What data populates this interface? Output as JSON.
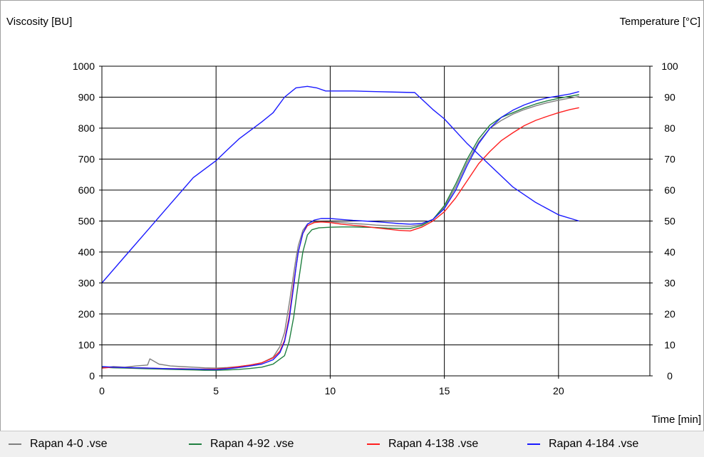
{
  "chart_data": {
    "type": "line",
    "ylabel": "Viscosity [BU]",
    "y2label": "Temperature [°C]",
    "xlabel": "Time [min]",
    "xlim": [
      0,
      24
    ],
    "ylim": [
      0,
      1000
    ],
    "y2lim": [
      0,
      100
    ],
    "x_ticks": [
      0,
      5,
      10,
      15,
      20
    ],
    "y_ticks": [
      0,
      100,
      200,
      300,
      400,
      500,
      600,
      700,
      800,
      900,
      1000
    ],
    "y2_ticks": [
      0,
      10,
      20,
      30,
      40,
      50,
      60,
      70,
      80,
      90,
      100
    ],
    "grid": true,
    "legend_position": "bottom",
    "series": [
      {
        "name": "Rapan 4-0 .vse",
        "color": "#808080",
        "axis": "viscosity",
        "x": [
          0,
          0.5,
          1,
          1.5,
          2,
          2.1,
          2.5,
          3,
          3.5,
          4,
          4.5,
          5,
          5.5,
          6,
          6.5,
          7,
          7.5,
          7.8,
          8,
          8.2,
          8.4,
          8.5,
          8.6,
          8.8,
          9,
          9.2,
          9.5,
          10,
          10.5,
          11,
          11.5,
          12,
          12.5,
          13,
          13.5,
          14,
          14.5,
          15,
          15.5,
          16,
          16.5,
          17,
          17.5,
          18,
          18.5,
          19,
          19.5,
          20,
          20.5,
          20.9
        ],
        "values": [
          25,
          30,
          28,
          32,
          35,
          55,
          38,
          32,
          30,
          28,
          26,
          25,
          27,
          30,
          35,
          42,
          60,
          95,
          140,
          230,
          330,
          380,
          420,
          470,
          490,
          497,
          498,
          497,
          495,
          492,
          490,
          487,
          485,
          484,
          483,
          488,
          505,
          545,
          610,
          690,
          755,
          800,
          825,
          845,
          860,
          872,
          882,
          890,
          897,
          902
        ]
      },
      {
        "name": "Rapan 4-92 .vse",
        "color": "#208040",
        "axis": "viscosity",
        "x": [
          0,
          0.5,
          1,
          1.5,
          2,
          2.5,
          3,
          3.5,
          4,
          4.5,
          5,
          5.5,
          6,
          6.5,
          7,
          7.5,
          8,
          8.2,
          8.4,
          8.6,
          8.8,
          9,
          9.2,
          9.5,
          10,
          10.5,
          11,
          11.5,
          12,
          12.5,
          13,
          13.5,
          14,
          14.5,
          15,
          15.5,
          16,
          16.5,
          17,
          17.5,
          18,
          18.5,
          19,
          19.5,
          20,
          20.5,
          20.9
        ],
        "values": [
          28,
          26,
          25,
          24,
          23,
          22,
          21,
          20,
          19,
          18,
          18,
          19,
          21,
          24,
          28,
          38,
          65,
          110,
          190,
          300,
          400,
          455,
          472,
          478,
          480,
          481,
          481,
          480,
          479,
          477,
          476,
          476,
          485,
          505,
          550,
          620,
          700,
          765,
          810,
          835,
          850,
          865,
          878,
          888,
          896,
          903,
          908
        ]
      },
      {
        "name": "Rapan 4-138 .vse",
        "color": "#ff2020",
        "axis": "viscosity",
        "x": [
          0,
          0.5,
          1,
          1.5,
          2,
          2.5,
          3,
          3.5,
          4,
          4.5,
          5,
          5.5,
          6,
          6.5,
          7,
          7.5,
          7.8,
          8,
          8.2,
          8.4,
          8.6,
          8.8,
          9,
          9.3,
          9.6,
          10,
          10.5,
          11,
          11.5,
          12,
          12.5,
          13,
          13.5,
          14,
          14.5,
          15,
          15.5,
          16,
          16.5,
          17,
          17.5,
          18,
          18.5,
          19,
          19.5,
          20,
          20.5,
          20.9
        ],
        "values": [
          25,
          28,
          27,
          26,
          25,
          24,
          23,
          23,
          22,
          22,
          22,
          25,
          30,
          35,
          42,
          58,
          80,
          115,
          190,
          300,
          400,
          460,
          485,
          495,
          497,
          495,
          490,
          486,
          483,
          478,
          474,
          470,
          468,
          480,
          500,
          530,
          575,
          630,
          685,
          725,
          760,
          785,
          808,
          825,
          838,
          850,
          860,
          866
        ]
      },
      {
        "name": "Rapan 4-184 .vse",
        "color": "#1a1aff",
        "axis": "viscosity",
        "x": [
          0,
          0.5,
          1,
          1.5,
          2,
          2.5,
          3,
          3.5,
          4,
          4.5,
          5,
          5.5,
          6,
          6.5,
          7,
          7.5,
          7.8,
          8,
          8.2,
          8.4,
          8.5,
          8.6,
          8.8,
          9,
          9.3,
          9.6,
          10,
          10.5,
          11,
          11.5,
          12,
          12.5,
          13,
          13.5,
          14,
          14.5,
          15,
          15.5,
          16,
          16.5,
          17,
          17.5,
          18,
          18.5,
          19,
          19.5,
          20,
          20.5,
          20.9
        ],
        "values": [
          30,
          28,
          27,
          26,
          25,
          24,
          23,
          22,
          22,
          21,
          20,
          23,
          27,
          32,
          38,
          52,
          75,
          110,
          180,
          290,
          350,
          400,
          460,
          490,
          503,
          508,
          508,
          505,
          502,
          500,
          498,
          495,
          492,
          490,
          492,
          505,
          540,
          600,
          680,
          750,
          800,
          835,
          858,
          875,
          888,
          898,
          904,
          910,
          918
        ]
      },
      {
        "name": "Temperature",
        "color": "#1a1aff",
        "axis": "temperature",
        "x": [
          0,
          1,
          2,
          3,
          4,
          5,
          5.5,
          6,
          7,
          7.5,
          8,
          8.5,
          9,
          9.4,
          9.8,
          10.5,
          11,
          12,
          13,
          13.7,
          14.5,
          15,
          16,
          17,
          18,
          19,
          20,
          20.9
        ],
        "values": [
          30,
          38.5,
          47,
          55.5,
          64,
          69.5,
          73,
          76.5,
          82,
          85,
          90,
          93,
          93.5,
          93,
          92,
          92,
          92,
          91.8,
          91.6,
          91.5,
          86,
          83,
          75,
          68,
          61,
          56,
          52,
          50
        ]
      }
    ]
  },
  "legend": [
    {
      "label": "Rapan 4-0 .vse",
      "color": "#808080"
    },
    {
      "label": "Rapan 4-92 .vse",
      "color": "#208040"
    },
    {
      "label": "Rapan 4-138 .vse",
      "color": "#ff2020"
    },
    {
      "label": "Rapan 4-184 .vse",
      "color": "#1a1aff"
    }
  ]
}
